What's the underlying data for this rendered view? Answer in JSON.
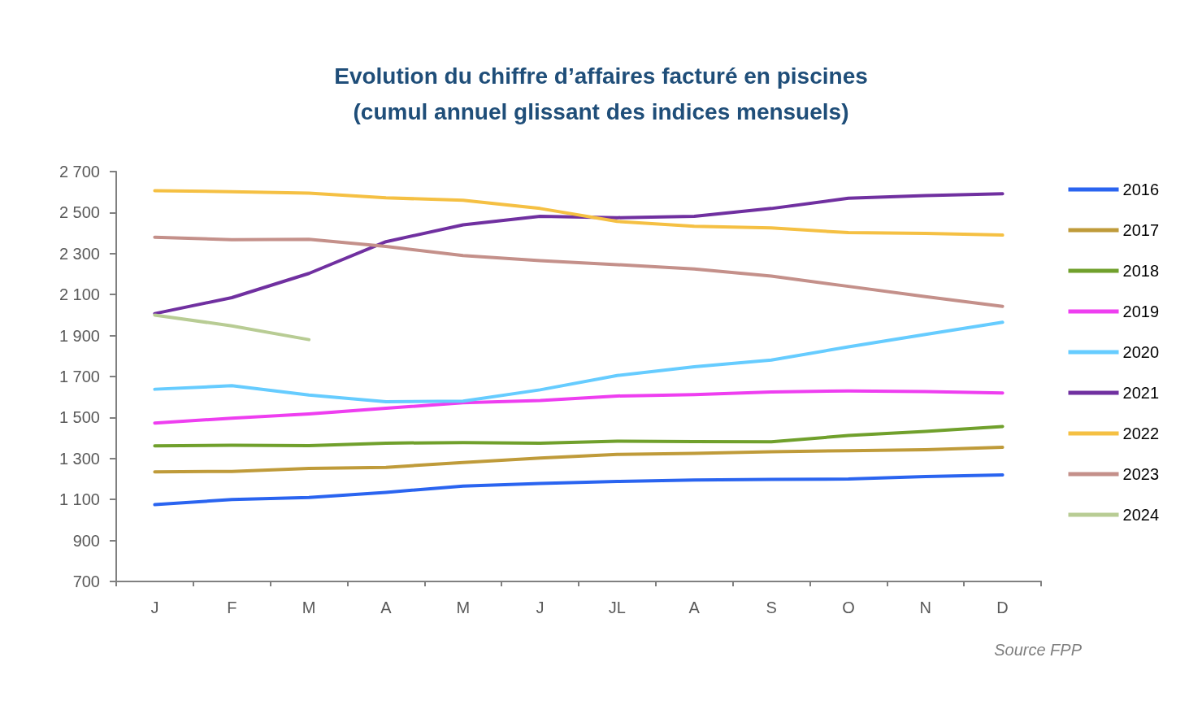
{
  "chart_data": {
    "type": "line",
    "title": "Evolution du chiffre d’affaires facturé en piscines\n(cumul annuel glissant des indices mensuels)",
    "categories": [
      "J",
      "F",
      "M",
      "A",
      "M",
      "J",
      "JL",
      "A",
      "S",
      "O",
      "N",
      "D"
    ],
    "series": [
      {
        "name": "2016",
        "color": "#2a64f0",
        "values": [
          1075,
          1100,
          1110,
          1135,
          1165,
          1178,
          1188,
          1195,
          1198,
          1200,
          1212,
          1220
        ]
      },
      {
        "name": "2017",
        "color": "#bf9b3a",
        "values": [
          1235,
          1237,
          1252,
          1257,
          1280,
          1302,
          1320,
          1325,
          1333,
          1338,
          1343,
          1355
        ]
      },
      {
        "name": "2018",
        "color": "#70a02c",
        "values": [
          1362,
          1365,
          1363,
          1375,
          1378,
          1375,
          1385,
          1383,
          1382,
          1412,
          1432,
          1456
        ]
      },
      {
        "name": "2019",
        "color": "#ee3ef0",
        "values": [
          1473,
          1497,
          1517,
          1545,
          1572,
          1583,
          1605,
          1612,
          1625,
          1630,
          1627,
          1620
        ]
      },
      {
        "name": "2020",
        "color": "#66ccff",
        "values": [
          1638,
          1655,
          1610,
          1577,
          1580,
          1635,
          1705,
          1748,
          1780,
          1845,
          1905,
          1965
        ]
      },
      {
        "name": "2021",
        "color": "#7030a0",
        "values": [
          2007,
          2085,
          2203,
          2358,
          2440,
          2482,
          2475,
          2482,
          2520,
          2570,
          2583,
          2592
        ]
      },
      {
        "name": "2022",
        "color": "#f5c043",
        "values": [
          2607,
          2602,
          2595,
          2572,
          2560,
          2520,
          2457,
          2433,
          2425,
          2402,
          2398,
          2390
        ]
      },
      {
        "name": "2023",
        "color": "#c4908a",
        "values": [
          2380,
          2368,
          2370,
          2335,
          2290,
          2265,
          2246,
          2225,
          2190,
          2140,
          2090,
          2042
        ]
      },
      {
        "name": "2024",
        "color": "#b8cc94",
        "values": [
          2000,
          1947,
          1880,
          null,
          null,
          null,
          null,
          null,
          null,
          null,
          null,
          null
        ]
      }
    ],
    "ylim": [
      700,
      2700
    ],
    "yticks": [
      {
        "value": 700,
        "label": "700"
      },
      {
        "value": 900,
        "label": "900"
      },
      {
        "value": 1100,
        "label": "1 100"
      },
      {
        "value": 1300,
        "label": "1 300"
      },
      {
        "value": 1500,
        "label": "1 500"
      },
      {
        "value": 1700,
        "label": "1 700"
      },
      {
        "value": 1900,
        "label": "1 900"
      },
      {
        "value": 2100,
        "label": "2 100"
      },
      {
        "value": 2300,
        "label": "2 300"
      },
      {
        "value": 2500,
        "label": "2 500"
      },
      {
        "value": 2700,
        "label": "2 700"
      }
    ],
    "grid": false,
    "legend": "right",
    "marker": "none",
    "annotations": [
      "Source FPP"
    ]
  }
}
